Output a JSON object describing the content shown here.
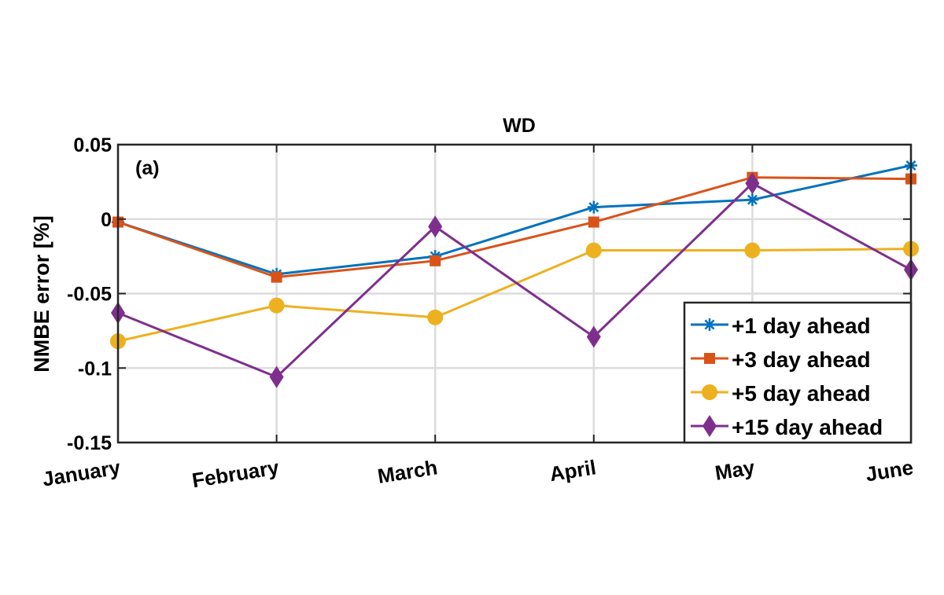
{
  "chart_data": {
    "type": "line",
    "title": "WD",
    "panel_label": "(a)",
    "xlabel": "",
    "ylabel": "NMBE error [%]",
    "categories": [
      "January",
      "February",
      "March",
      "April",
      "May",
      "June"
    ],
    "ylim": [
      -0.15,
      0.05
    ],
    "yticks": [
      0.05,
      0,
      -0.05,
      -0.1,
      -0.15
    ],
    "ytick_labels": [
      "0.05",
      "0",
      "-0.05",
      "-0.1",
      "-0.15"
    ],
    "grid": true,
    "legend_position": "bottom-right",
    "series": [
      {
        "name": "+1 day ahead",
        "color": "#0072BD",
        "marker": "asterisk",
        "values": [
          -0.002,
          -0.037,
          -0.025,
          0.008,
          0.013,
          0.036
        ]
      },
      {
        "name": "+3 day ahead",
        "color": "#D95319",
        "marker": "square",
        "values": [
          -0.002,
          -0.039,
          -0.028,
          -0.002,
          0.028,
          0.027
        ]
      },
      {
        "name": "+5 day ahead",
        "color": "#EDB120",
        "marker": "circle",
        "values": [
          -0.082,
          -0.058,
          -0.066,
          -0.021,
          -0.021,
          -0.02
        ]
      },
      {
        "name": "+15 day ahead",
        "color": "#7E2F8E",
        "marker": "diamond",
        "values": [
          -0.063,
          -0.106,
          -0.005,
          -0.079,
          0.024,
          -0.034
        ]
      }
    ]
  }
}
